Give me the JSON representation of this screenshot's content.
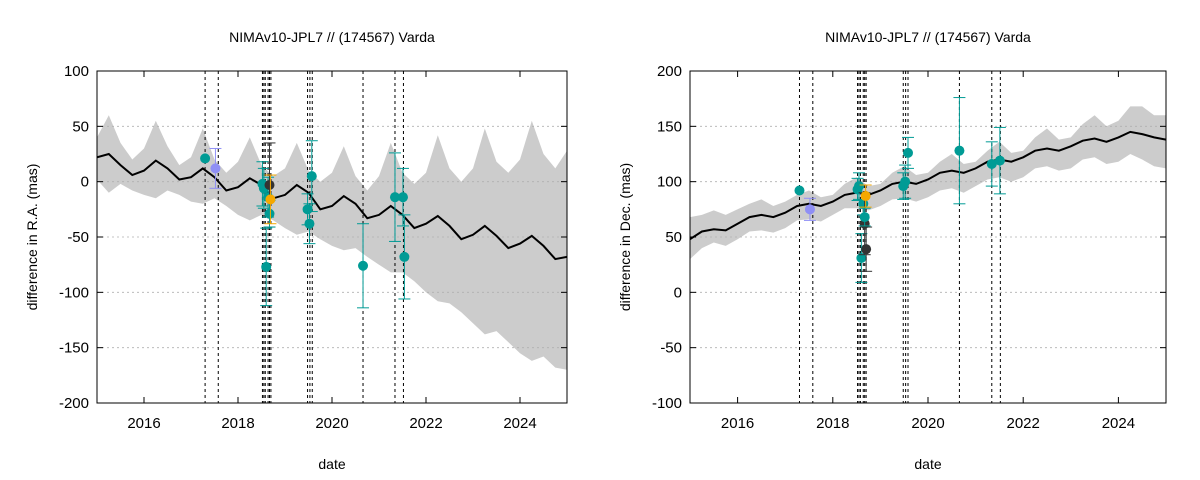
{
  "colors": {
    "band": "#cccccc",
    "model_line": "#000000",
    "grid": "#b0b0b0",
    "teal": "#009b95",
    "lavender": "#8f8ff5",
    "orange": "#f5a800",
    "dark": "#333333"
  },
  "chart_data": [
    {
      "type": "line",
      "title": "NIMAv10-JPL7 // (174567) Varda",
      "xlabel": "date",
      "ylabel": "difference in R.A. (mas)",
      "xlim": [
        2015.0,
        2025.0
      ],
      "ylim": [
        -200,
        100
      ],
      "xticks": [
        2016,
        2018,
        2020,
        2022,
        2024
      ],
      "xtick_labels": [
        "2016",
        "2018",
        "2020",
        "2022",
        "2024"
      ],
      "yticks": [
        -200,
        -150,
        -100,
        -50,
        0,
        50,
        100
      ],
      "ytick_labels": [
        "-200",
        "-150",
        "-100",
        "-50",
        "0",
        "50",
        "100"
      ],
      "grid": true,
      "model": {
        "x": [
          2015.0,
          2015.25,
          2015.5,
          2015.75,
          2016.0,
          2016.25,
          2016.5,
          2016.75,
          2017.0,
          2017.25,
          2017.5,
          2017.75,
          2018.0,
          2018.25,
          2018.5,
          2018.75,
          2019.0,
          2019.25,
          2019.5,
          2019.75,
          2020.0,
          2020.25,
          2020.5,
          2020.75,
          2021.0,
          2021.25,
          2021.5,
          2021.75,
          2022.0,
          2022.25,
          2022.5,
          2022.75,
          2023.0,
          2023.25,
          2023.5,
          2023.75,
          2024.0,
          2024.25,
          2024.5,
          2024.75,
          2025.0
        ],
        "y": [
          22,
          25,
          15,
          6,
          10,
          19,
          12,
          2,
          4,
          12,
          4,
          -8,
          -5,
          3,
          -3,
          -15,
          -12,
          -3,
          -10,
          -25,
          -22,
          -13,
          -20,
          -33,
          -30,
          -22,
          -30,
          -42,
          -38,
          -31,
          -40,
          -52,
          -48,
          -40,
          -49,
          -60,
          -56,
          -49,
          -58,
          -70,
          -68
        ]
      },
      "band": {
        "x": [
          2015.0,
          2015.25,
          2015.5,
          2015.75,
          2016.0,
          2016.25,
          2016.5,
          2016.75,
          2017.0,
          2017.25,
          2017.5,
          2017.75,
          2018.0,
          2018.25,
          2018.5,
          2018.75,
          2019.0,
          2019.25,
          2019.5,
          2019.75,
          2020.0,
          2020.25,
          2020.5,
          2020.75,
          2021.0,
          2021.25,
          2021.5,
          2021.75,
          2022.0,
          2022.25,
          2022.5,
          2022.75,
          2023.0,
          2023.25,
          2023.5,
          2023.75,
          2024.0,
          2024.25,
          2024.5,
          2024.75,
          2025.0
        ],
        "upper": [
          40,
          60,
          35,
          20,
          30,
          55,
          32,
          15,
          22,
          48,
          20,
          8,
          18,
          40,
          15,
          5,
          12,
          35,
          10,
          0,
          8,
          32,
          5,
          -8,
          5,
          35,
          8,
          -2,
          8,
          42,
          12,
          0,
          12,
          48,
          18,
          8,
          20,
          55,
          25,
          12,
          28
        ],
        "lower": [
          2,
          -10,
          -2,
          -8,
          -12,
          -15,
          -8,
          -12,
          -18,
          -20,
          -15,
          -22,
          -30,
          -35,
          -30,
          -35,
          -42,
          -48,
          -45,
          -52,
          -58,
          -62,
          -60,
          -68,
          -75,
          -82,
          -82,
          -90,
          -100,
          -108,
          -110,
          -118,
          -128,
          -138,
          -135,
          -145,
          -155,
          -162,
          -158,
          -168,
          -170
        ]
      },
      "vlines": [
        2017.3,
        2017.58,
        2018.52,
        2018.55,
        2018.58,
        2018.64,
        2018.67,
        2018.7,
        2019.48,
        2019.53,
        2019.58,
        2020.66,
        2021.34,
        2021.52
      ],
      "points": [
        {
          "series": "teal",
          "x": 2017.3,
          "y": 21,
          "err": 0
        },
        {
          "series": "lavender",
          "x": 2017.52,
          "y": 12,
          "err": 18
        },
        {
          "series": "teal",
          "x": 2018.52,
          "y": -2,
          "err": 20
        },
        {
          "series": "teal",
          "x": 2018.55,
          "y": -6,
          "err": 18
        },
        {
          "series": "teal",
          "x": 2018.6,
          "y": -77,
          "err": 35
        },
        {
          "series": "teal",
          "x": 2018.64,
          "y": -14,
          "err": 18
        },
        {
          "series": "dark",
          "x": 2018.67,
          "y": -3,
          "err": 38
        },
        {
          "series": "teal",
          "x": 2018.67,
          "y": -29,
          "err": 12
        },
        {
          "series": "orange",
          "x": 2018.69,
          "y": -16,
          "err": 22
        },
        {
          "series": "teal",
          "x": 2019.48,
          "y": -25,
          "err": 14
        },
        {
          "series": "teal",
          "x": 2019.52,
          "y": -38,
          "err": 18
        },
        {
          "series": "teal",
          "x": 2019.57,
          "y": 5,
          "err": 32
        },
        {
          "series": "teal",
          "x": 2020.66,
          "y": -76,
          "err": 38
        },
        {
          "series": "teal",
          "x": 2021.34,
          "y": -14,
          "err": 40
        },
        {
          "series": "teal",
          "x": 2021.51,
          "y": -14,
          "err": 26
        },
        {
          "series": "teal",
          "x": 2021.54,
          "y": -68,
          "err": 38
        }
      ]
    },
    {
      "type": "line",
      "title": "NIMAv10-JPL7 // (174567) Varda",
      "xlabel": "date",
      "ylabel": "difference in Dec. (mas)",
      "xlim": [
        2015.0,
        2025.0
      ],
      "ylim": [
        -100,
        200
      ],
      "xticks": [
        2016,
        2018,
        2020,
        2022,
        2024
      ],
      "xtick_labels": [
        "2016",
        "2018",
        "2020",
        "2022",
        "2024"
      ],
      "yticks": [
        -100,
        -50,
        0,
        50,
        100,
        150,
        200
      ],
      "ytick_labels": [
        "-100",
        "-50",
        "0",
        "50",
        "100",
        "150",
        "200"
      ],
      "grid": true,
      "model": {
        "x": [
          2015.0,
          2015.25,
          2015.5,
          2015.75,
          2016.0,
          2016.25,
          2016.5,
          2016.75,
          2017.0,
          2017.25,
          2017.5,
          2017.75,
          2018.0,
          2018.25,
          2018.5,
          2018.75,
          2019.0,
          2019.25,
          2019.5,
          2019.75,
          2020.0,
          2020.25,
          2020.5,
          2020.75,
          2021.0,
          2021.25,
          2021.5,
          2021.75,
          2022.0,
          2022.25,
          2022.5,
          2022.75,
          2023.0,
          2023.25,
          2023.5,
          2023.75,
          2024.0,
          2024.25,
          2024.5,
          2024.75,
          2025.0
        ],
        "y": [
          48,
          55,
          57,
          56,
          62,
          68,
          70,
          68,
          72,
          78,
          80,
          78,
          82,
          88,
          90,
          88,
          92,
          98,
          100,
          98,
          102,
          108,
          110,
          108,
          112,
          118,
          120,
          118,
          122,
          128,
          130,
          128,
          132,
          137,
          139,
          136,
          140,
          145,
          143,
          140,
          138
        ]
      },
      "band": {
        "x": [
          2015.0,
          2015.25,
          2015.5,
          2015.75,
          2016.0,
          2016.25,
          2016.5,
          2016.75,
          2017.0,
          2017.25,
          2017.5,
          2017.75,
          2018.0,
          2018.25,
          2018.5,
          2018.75,
          2019.0,
          2019.25,
          2019.5,
          2019.75,
          2020.0,
          2020.25,
          2020.5,
          2020.75,
          2021.0,
          2021.25,
          2021.5,
          2021.75,
          2022.0,
          2022.25,
          2022.5,
          2022.75,
          2023.0,
          2023.25,
          2023.5,
          2023.75,
          2024.0,
          2024.25,
          2024.5,
          2024.75,
          2025.0
        ],
        "upper": [
          68,
          70,
          74,
          70,
          75,
          80,
          84,
          78,
          82,
          88,
          92,
          86,
          88,
          98,
          104,
          96,
          98,
          108,
          114,
          106,
          108,
          118,
          125,
          116,
          118,
          128,
          136,
          126,
          128,
          140,
          148,
          138,
          140,
          152,
          160,
          150,
          155,
          168,
          168,
          160,
          160
        ],
        "lower": [
          30,
          40,
          45,
          42,
          48,
          55,
          56,
          54,
          58,
          65,
          66,
          64,
          70,
          76,
          76,
          74,
          78,
          84,
          85,
          82,
          86,
          92,
          94,
          90,
          96,
          102,
          104,
          100,
          104,
          112,
          114,
          110,
          112,
          120,
          122,
          116,
          118,
          125,
          120,
          114,
          112
        ]
      },
      "vlines": [
        2017.3,
        2017.58,
        2018.52,
        2018.55,
        2018.58,
        2018.64,
        2018.67,
        2018.7,
        2019.48,
        2019.53,
        2019.58,
        2020.66,
        2021.34,
        2021.52
      ],
      "points": [
        {
          "series": "teal",
          "x": 2017.3,
          "y": 92,
          "err": 0
        },
        {
          "series": "lavender",
          "x": 2017.52,
          "y": 75,
          "err": 10
        },
        {
          "series": "teal",
          "x": 2018.52,
          "y": 93,
          "err": 10
        },
        {
          "series": "teal",
          "x": 2018.55,
          "y": 96,
          "err": 12
        },
        {
          "series": "teal",
          "x": 2018.6,
          "y": 31,
          "err": 22
        },
        {
          "series": "teal",
          "x": 2018.64,
          "y": 80,
          "err": 10
        },
        {
          "series": "dark",
          "x": 2018.67,
          "y": 62,
          "err": 28
        },
        {
          "series": "dark",
          "x": 2018.7,
          "y": 39,
          "err": 20
        },
        {
          "series": "teal",
          "x": 2018.67,
          "y": 68,
          "err": 8
        },
        {
          "series": "orange",
          "x": 2018.69,
          "y": 87,
          "err": 10
        },
        {
          "series": "teal",
          "x": 2019.48,
          "y": 96,
          "err": 12
        },
        {
          "series": "teal",
          "x": 2019.52,
          "y": 100,
          "err": 15
        },
        {
          "series": "teal",
          "x": 2019.58,
          "y": 126,
          "err": 14
        },
        {
          "series": "teal",
          "x": 2020.66,
          "y": 128,
          "err": 48
        },
        {
          "series": "teal",
          "x": 2021.34,
          "y": 116,
          "err": 20
        },
        {
          "series": "teal",
          "x": 2021.51,
          "y": 119,
          "err": 30
        }
      ]
    }
  ]
}
